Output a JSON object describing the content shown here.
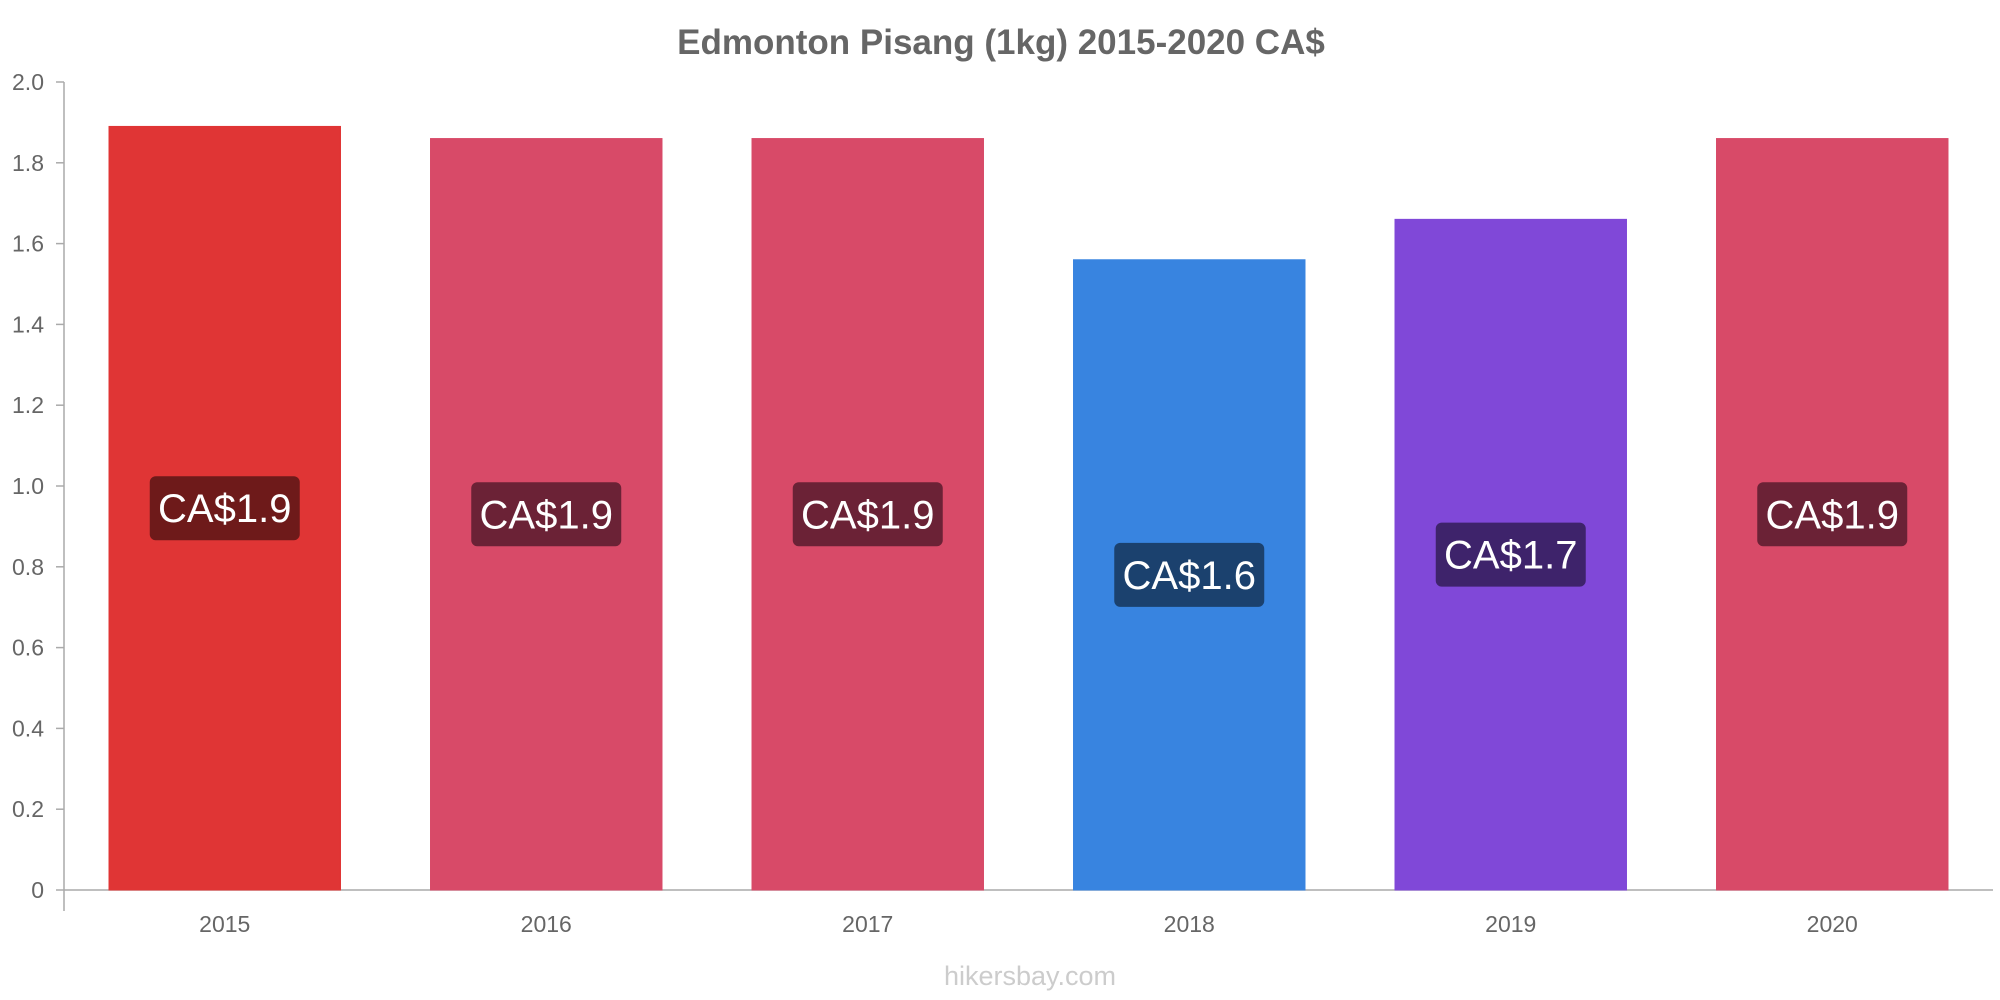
{
  "chart_data": {
    "type": "bar",
    "title": "Edmonton Pisang (1kg) 2015-2020 CA$",
    "categories": [
      "2015",
      "2016",
      "2017",
      "2018",
      "2019",
      "2020"
    ],
    "values": [
      1.89,
      1.86,
      1.86,
      1.56,
      1.66,
      1.86
    ],
    "data_labels": [
      "CA$1.9",
      "CA$1.9",
      "CA$1.9",
      "CA$1.6",
      "CA$1.7",
      "CA$1.9"
    ],
    "bar_colors": [
      "#e03535",
      "#d84a68",
      "#d84a68",
      "#3884e0",
      "#8048d8",
      "#d84a68"
    ],
    "label_bg_colors": [
      "#6e1a1a",
      "#6b2236",
      "#6b2236",
      "#1b416e",
      "#3e236b",
      "#6b2236"
    ],
    "xlabel": "",
    "ylabel": "",
    "ylim": [
      0,
      2.0
    ],
    "yticks": [
      {
        "value": 0,
        "label": "0"
      },
      {
        "value": 0.2,
        "label": "0.2"
      },
      {
        "value": 0.4,
        "label": "0.4"
      },
      {
        "value": 0.6,
        "label": "0.6"
      },
      {
        "value": 0.8,
        "label": "0.8"
      },
      {
        "value": 1.0,
        "label": "1.0"
      },
      {
        "value": 1.2,
        "label": "1.2"
      },
      {
        "value": 1.4,
        "label": "1.4"
      },
      {
        "value": 1.6,
        "label": "1.6"
      },
      {
        "value": 1.8,
        "label": "1.8"
      },
      {
        "value": 2.0,
        "label": "2.0"
      }
    ],
    "grid": false,
    "legend": "none"
  },
  "watermark": "hikersbay.com"
}
